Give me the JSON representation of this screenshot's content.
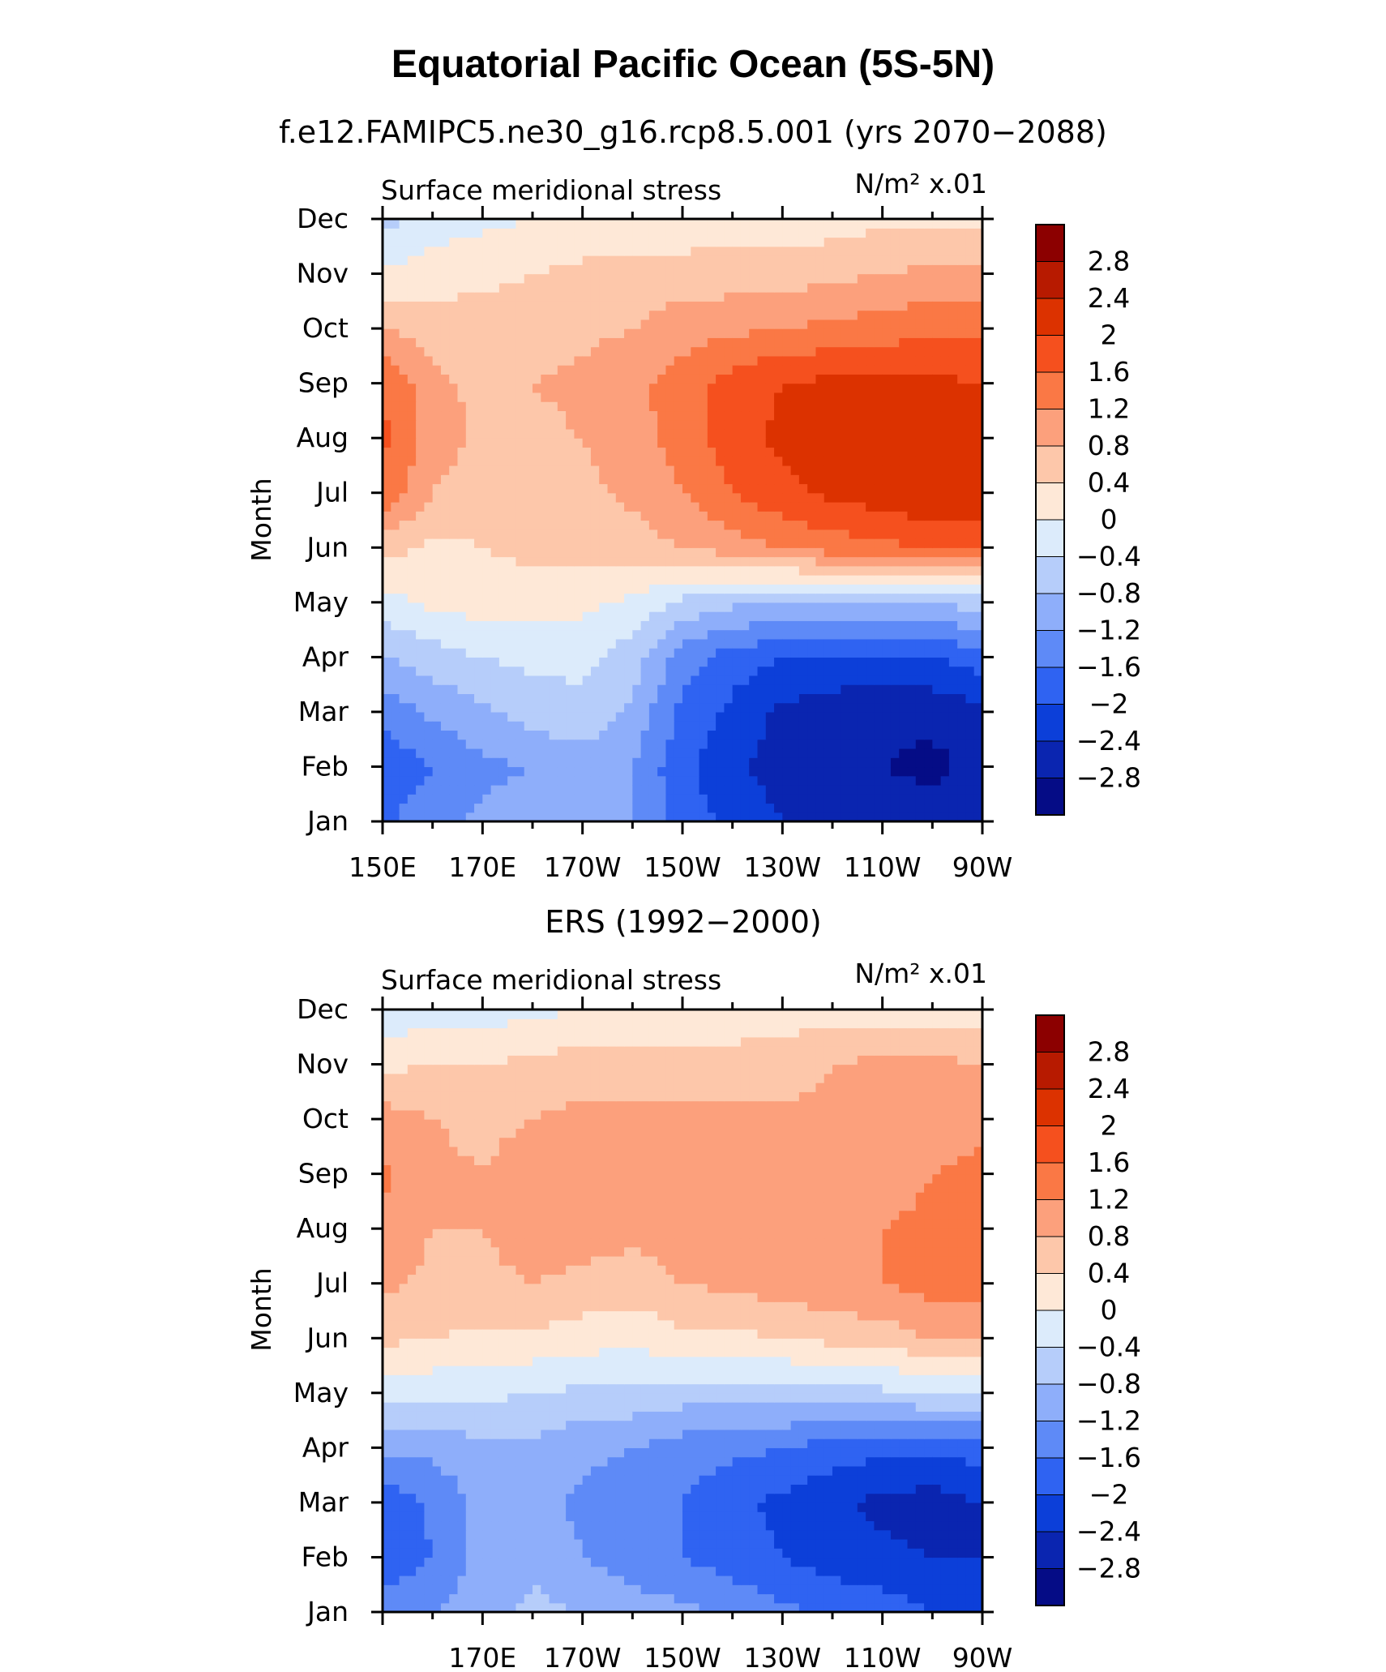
{
  "title": "Equatorial Pacific Ocean (5S-5N)",
  "panels": [
    {
      "id": "model",
      "subtitle": "f.e12.FAMIPC5.ne30_g16.rcp8.5.001 (yrs 2070−2088)",
      "left_label": "Surface meridional stress",
      "units_label": "N/m² x.01",
      "ylabel": "Month",
      "ytick_labels": [
        "Jan",
        "Feb",
        "Mar",
        "Apr",
        "May",
        "Jun",
        "Jul",
        "Aug",
        "Sep",
        "Oct",
        "Nov",
        "Dec"
      ],
      "xtick_labels": [
        "150E",
        "170E",
        "170W",
        "150W",
        "130W",
        "110W",
        "90W"
      ]
    },
    {
      "id": "obs",
      "subtitle": "ERS (1992−2000)",
      "left_label": "Surface meridional stress",
      "units_label": "N/m² x.01",
      "ylabel": "Month",
      "ytick_labels": [
        "Jan",
        "Feb",
        "Mar",
        "Apr",
        "May",
        "Jun",
        "Jul",
        "Aug",
        "Sep",
        "Oct",
        "Nov",
        "Dec"
      ],
      "xtick_labels": [
        "",
        "170E",
        "170W",
        "150W",
        "130W",
        "110W",
        "90W"
      ]
    }
  ],
  "colorbar": {
    "labels": [
      "2.8",
      "2.4",
      "2",
      "1.6",
      "1.2",
      "0.8",
      "0.4",
      "0",
      "−0.4",
      "−0.8",
      "−1.2",
      "−1.6",
      "−2",
      "−2.4",
      "−2.8"
    ],
    "colors": [
      "#8c0000",
      "#b71a00",
      "#dc3200",
      "#f5501e",
      "#fa7845",
      "#fca07c",
      "#fdc7aa",
      "#fee8d7",
      "#dcebfb",
      "#b6cdfa",
      "#8eaefa",
      "#5e8af7",
      "#2f63f2",
      "#0c3fd9",
      "#0a25b0",
      "#050c86"
    ]
  },
  "chart_data": [
    {
      "type": "heatmap",
      "title": "f.e12.FAMIPC5.ne30_g16.rcp8.5.001 (yrs 2070−2088)",
      "variable": "Surface meridional stress",
      "units": "N/m² x.01",
      "xlabel": "",
      "ylabel": "Month",
      "x_lon_deg": [
        150,
        160,
        170,
        180,
        190,
        200,
        210,
        220,
        230,
        240,
        250,
        260,
        270
      ],
      "y_months": [
        "Jan",
        "Feb",
        "Mar",
        "Apr",
        "May",
        "Jun",
        "Jul",
        "Aug",
        "Sep",
        "Oct",
        "Nov",
        "Dec"
      ],
      "xlim": [
        150,
        270
      ],
      "levels": [
        -2.8,
        -2.4,
        -2,
        -1.6,
        -1.2,
        -0.8,
        -0.4,
        0,
        0.4,
        0.8,
        1.2,
        1.6,
        2,
        2.4,
        2.8
      ],
      "z": [
        [
          -1.7,
          -1.3,
          -1.1,
          -1.0,
          -0.9,
          -1.2,
          -1.8,
          -2.1,
          -2.4,
          -2.5,
          -2.6,
          -2.6,
          -2.6
        ],
        [
          -1.9,
          -1.6,
          -1.3,
          -1.2,
          -1.0,
          -1.2,
          -1.9,
          -2.3,
          -2.6,
          -2.7,
          -2.8,
          -2.9,
          -2.7
        ],
        [
          -1.5,
          -1.1,
          -0.9,
          -0.6,
          -0.5,
          -0.9,
          -1.7,
          -2.1,
          -2.5,
          -2.6,
          -2.7,
          -2.7,
          -2.5
        ],
        [
          -0.8,
          -0.6,
          -0.4,
          -0.3,
          -0.3,
          -0.6,
          -1.4,
          -1.8,
          -2.0,
          -2.1,
          -2.1,
          -2.0,
          -1.8
        ],
        [
          -0.2,
          0.1,
          0.2,
          0.2,
          0.1,
          -0.1,
          -0.5,
          -0.7,
          -0.8,
          -0.8,
          -0.8,
          -0.7,
          -0.7
        ],
        [
          0.6,
          0.3,
          0.4,
          0.5,
          0.6,
          0.6,
          0.8,
          1.0,
          1.2,
          1.4,
          1.5,
          1.6,
          1.6
        ],
        [
          1.5,
          0.8,
          0.6,
          0.6,
          0.7,
          0.9,
          1.2,
          1.6,
          1.9,
          2.1,
          2.2,
          2.4,
          2.3
        ],
        [
          1.7,
          1.0,
          0.7,
          0.7,
          0.8,
          1.0,
          1.4,
          1.8,
          2.1,
          2.2,
          2.2,
          2.3,
          2.2
        ],
        [
          1.6,
          0.9,
          0.7,
          0.8,
          0.9,
          1.1,
          1.4,
          1.8,
          2.0,
          2.1,
          2.1,
          2.1,
          2.0
        ],
        [
          0.8,
          0.6,
          0.6,
          0.6,
          0.7,
          0.8,
          1.0,
          1.1,
          1.2,
          1.3,
          1.4,
          1.5,
          1.5
        ],
        [
          0.1,
          0.2,
          0.3,
          0.4,
          0.5,
          0.6,
          0.6,
          0.6,
          0.6,
          0.7,
          0.8,
          0.9,
          0.9
        ],
        [
          -0.6,
          -0.2,
          -0.1,
          0.0,
          0.1,
          0.1,
          0.1,
          0.2,
          0.2,
          0.2,
          0.3,
          0.3,
          0.3
        ]
      ]
    },
    {
      "type": "heatmap",
      "title": "ERS (1992−2000)",
      "variable": "Surface meridional stress",
      "units": "N/m² x.01",
      "xlabel": "",
      "ylabel": "Month",
      "x_lon_deg": [
        150,
        160,
        170,
        180,
        190,
        200,
        210,
        220,
        230,
        240,
        250,
        260,
        270
      ],
      "y_months": [
        "Jan",
        "Feb",
        "Mar",
        "Apr",
        "May",
        "Jun",
        "Jul",
        "Aug",
        "Sep",
        "Oct",
        "Nov",
        "Dec"
      ],
      "xlim": [
        150,
        270
      ],
      "levels": [
        -2.8,
        -2.4,
        -2,
        -1.6,
        -1.2,
        -0.8,
        -0.4,
        0,
        0.4,
        0.8,
        1.2,
        1.6,
        2,
        2.4,
        2.8
      ],
      "z": [
        [
          -1.4,
          -1.2,
          -1.0,
          -0.7,
          -0.8,
          -1.0,
          -1.1,
          -1.3,
          -1.5,
          -1.7,
          -1.8,
          -2.0,
          -2.0
        ],
        [
          -1.9,
          -1.6,
          -1.0,
          -0.9,
          -1.2,
          -1.4,
          -1.6,
          -1.8,
          -2.0,
          -2.2,
          -2.3,
          -2.4,
          -2.4
        ],
        [
          -1.9,
          -1.5,
          -1.1,
          -1.0,
          -1.3,
          -1.4,
          -1.6,
          -1.9,
          -2.1,
          -2.3,
          -2.5,
          -2.6,
          -2.4
        ],
        [
          -1.0,
          -1.1,
          -0.9,
          -0.9,
          -1.1,
          -1.2,
          -1.4,
          -1.5,
          -1.6,
          -1.8,
          -1.9,
          -1.9,
          -1.8
        ],
        [
          -0.2,
          -0.3,
          -0.3,
          -0.4,
          -0.5,
          -0.5,
          -0.6,
          -0.6,
          -0.6,
          -0.5,
          -0.5,
          -0.4,
          -0.4
        ],
        [
          0.5,
          0.4,
          0.3,
          0.3,
          0.2,
          0.1,
          0.3,
          0.3,
          0.4,
          0.5,
          0.6,
          0.8,
          0.8
        ],
        [
          0.9,
          0.7,
          0.7,
          0.8,
          0.7,
          0.6,
          0.8,
          0.9,
          1.0,
          1.1,
          1.2,
          1.4,
          1.4
        ],
        [
          1.1,
          0.8,
          0.8,
          1.0,
          1.0,
          0.9,
          1.0,
          1.1,
          1.1,
          1.1,
          1.2,
          1.3,
          1.4
        ],
        [
          1.3,
          0.9,
          0.8,
          1.0,
          1.1,
          1.0,
          1.0,
          1.1,
          1.1,
          1.0,
          1.0,
          1.2,
          1.3
        ],
        [
          1.0,
          0.8,
          0.7,
          0.8,
          0.9,
          0.9,
          0.9,
          0.9,
          0.9,
          0.9,
          0.9,
          1.0,
          1.1
        ],
        [
          0.3,
          0.4,
          0.4,
          0.5,
          0.6,
          0.6,
          0.6,
          0.6,
          0.6,
          0.8,
          0.9,
          0.9,
          0.8
        ],
        [
          -0.3,
          -0.2,
          -0.2,
          -0.1,
          0.0,
          0.1,
          0.1,
          0.1,
          0.2,
          0.2,
          0.2,
          0.2,
          0.2
        ]
      ]
    }
  ]
}
